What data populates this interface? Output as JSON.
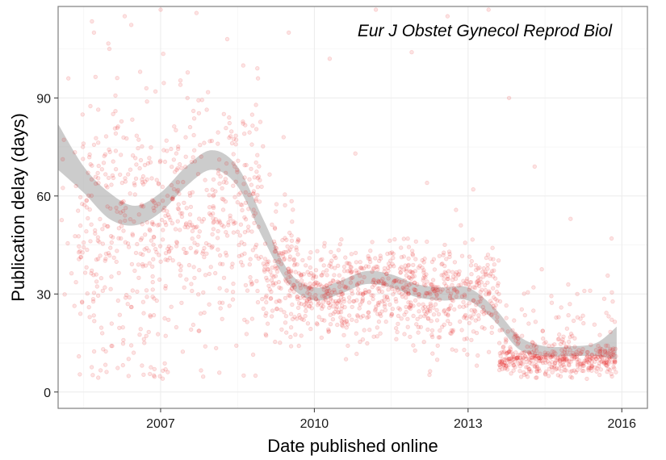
{
  "chart_data": {
    "type": "scatter",
    "title": "",
    "annotation": "Eur J Obstet Gynecol Reprod Biol",
    "xlabel": "Date published online",
    "ylabel": "Publication delay (days)",
    "xlim": [
      2005.0,
      2016.5
    ],
    "ylim": [
      -5,
      118
    ],
    "x_ticks": [
      2007,
      2010,
      2013,
      2016
    ],
    "y_ticks": [
      0,
      30,
      60,
      90
    ],
    "grid": true,
    "point_color": "#e31a1c",
    "point_opacity": 0.12,
    "band_color": "#999999",
    "smooth_trend": {
      "x": [
        2005.0,
        2005.5,
        2006.0,
        2006.5,
        2007.0,
        2007.5,
        2008.0,
        2008.5,
        2009.0,
        2009.5,
        2010.0,
        2010.5,
        2011.0,
        2011.5,
        2012.0,
        2012.5,
        2013.0,
        2013.5,
        2014.0,
        2014.5,
        2015.0,
        2015.5,
        2015.9
      ],
      "y": [
        75,
        65,
        57,
        54,
        58,
        66,
        71,
        66,
        50,
        35,
        30,
        32,
        35,
        34,
        31,
        30,
        30,
        24,
        15,
        12,
        12,
        13,
        15
      ],
      "lower": [
        68,
        61,
        53,
        51,
        55,
        63,
        68,
        63,
        47,
        33,
        28,
        30,
        33,
        32,
        29,
        28,
        28,
        22,
        13,
        11,
        11,
        11,
        10
      ],
      "upper": [
        82,
        69,
        61,
        57,
        61,
        69,
        74,
        69,
        53,
        37,
        32,
        34,
        37,
        36,
        33,
        32,
        32,
        26,
        17,
        14,
        14,
        15,
        20
      ]
    },
    "point_clusters": [
      {
        "x_start": 2005.0,
        "x_end": 2005.4,
        "center": 55,
        "spread": 18,
        "count": 14
      },
      {
        "x_start": 2005.4,
        "x_end": 2006.2,
        "center": 50,
        "spread": 24,
        "count": 150
      },
      {
        "x_start": 2006.2,
        "x_end": 2007.2,
        "center": 48,
        "spread": 20,
        "count": 200
      },
      {
        "x_start": 2007.2,
        "x_end": 2008.2,
        "center": 52,
        "spread": 18,
        "count": 180
      },
      {
        "x_start": 2008.2,
        "x_end": 2009.0,
        "center": 55,
        "spread": 18,
        "count": 150
      },
      {
        "x_start": 2009.0,
        "x_end": 2009.7,
        "center": 35,
        "spread": 10,
        "count": 150
      },
      {
        "x_start": 2009.7,
        "x_end": 2011.0,
        "center": 30,
        "spread": 7,
        "count": 260
      },
      {
        "x_start": 2011.0,
        "x_end": 2012.2,
        "center": 31,
        "spread": 7,
        "count": 240
      },
      {
        "x_start": 2012.2,
        "x_end": 2013.6,
        "center": 29,
        "spread": 8,
        "count": 260
      },
      {
        "x_start": 2013.6,
        "x_end": 2015.9,
        "center": 10,
        "spread": 2.5,
        "count": 380
      },
      {
        "x_start": 2013.6,
        "x_end": 2015.9,
        "center": 18,
        "spread": 7,
        "count": 90
      }
    ],
    "outlier_points": [
      {
        "x": 2005.7,
        "y": 110
      },
      {
        "x": 2006.0,
        "y": 105
      },
      {
        "x": 2006.3,
        "y": 115
      },
      {
        "x": 2006.6,
        "y": 98
      },
      {
        "x": 2007.0,
        "y": 117
      },
      {
        "x": 2007.7,
        "y": 116
      },
      {
        "x": 2008.3,
        "y": 108
      },
      {
        "x": 2008.9,
        "y": 96
      },
      {
        "x": 2009.5,
        "y": 110
      },
      {
        "x": 2010.3,
        "y": 102
      },
      {
        "x": 2011.2,
        "y": 117
      },
      {
        "x": 2011.9,
        "y": 104
      },
      {
        "x": 2012.6,
        "y": 115
      },
      {
        "x": 2013.4,
        "y": 117
      },
      {
        "x": 2013.8,
        "y": 90
      },
      {
        "x": 2014.3,
        "y": 69
      },
      {
        "x": 2015.0,
        "y": 53
      },
      {
        "x": 2015.8,
        "y": 47
      },
      {
        "x": 2009.4,
        "y": 78
      },
      {
        "x": 2010.8,
        "y": 73
      },
      {
        "x": 2012.2,
        "y": 64
      },
      {
        "x": 2013.1,
        "y": 62
      },
      {
        "x": 2005.2,
        "y": 96
      },
      {
        "x": 2006.9,
        "y": 92
      }
    ]
  }
}
